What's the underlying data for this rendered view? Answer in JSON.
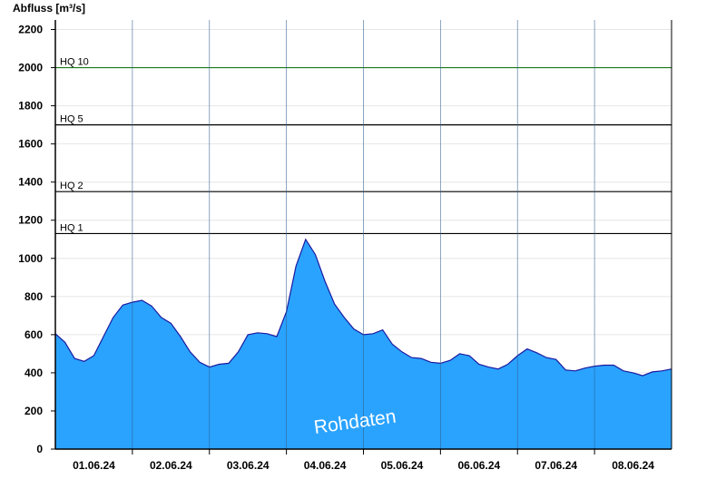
{
  "chart_data": {
    "type": "area",
    "ylabel": "Abfluss [m³/s]",
    "ylim": [
      0,
      2250
    ],
    "yticks": [
      0,
      200,
      400,
      600,
      800,
      1000,
      1200,
      1400,
      1600,
      1800,
      2000,
      2200
    ],
    "x_start": "2024-05-31T12:00",
    "x_end": "2024-06-08T12:00",
    "day_labels": [
      "01.06.24",
      "02.06.24",
      "03.06.24",
      "04.06.24",
      "05.06.24",
      "06.06.24",
      "07.06.24",
      "08.06.24"
    ],
    "grid": true,
    "fill_color": "#2aa3ff",
    "line_color": "#1a1aa0",
    "watermark": "Rohdaten",
    "thresholds": [
      {
        "label": "HQ 1",
        "value": 1130,
        "color": "#000000"
      },
      {
        "label": "HQ 2",
        "value": 1350,
        "color": "#000000"
      },
      {
        "label": "HQ 5",
        "value": 1700,
        "color": "#000000"
      },
      {
        "label": "HQ 10",
        "value": 2000,
        "color": "#1a7a1a"
      }
    ],
    "series": [
      {
        "x": [
          "2024-05-31T12:00",
          "2024-05-31T15:00",
          "2024-05-31T18:00",
          "2024-05-31T21:00",
          "2024-06-01T00:00",
          "2024-06-01T03:00",
          "2024-06-01T06:00",
          "2024-06-01T09:00",
          "2024-06-01T12:00",
          "2024-06-01T15:00",
          "2024-06-01T18:00",
          "2024-06-01T21:00",
          "2024-06-02T00:00",
          "2024-06-02T03:00",
          "2024-06-02T06:00",
          "2024-06-02T09:00",
          "2024-06-02T12:00",
          "2024-06-02T15:00",
          "2024-06-02T18:00",
          "2024-06-02T21:00",
          "2024-06-03T00:00",
          "2024-06-03T03:00",
          "2024-06-03T06:00",
          "2024-06-03T09:00",
          "2024-06-03T12:00",
          "2024-06-03T15:00",
          "2024-06-03T18:00",
          "2024-06-03T21:00",
          "2024-06-04T00:00",
          "2024-06-04T03:00",
          "2024-06-04T06:00",
          "2024-06-04T09:00",
          "2024-06-04T12:00",
          "2024-06-04T15:00",
          "2024-06-04T18:00",
          "2024-06-04T21:00",
          "2024-06-05T00:00",
          "2024-06-05T03:00",
          "2024-06-05T06:00",
          "2024-06-05T09:00",
          "2024-06-05T12:00",
          "2024-06-05T15:00",
          "2024-06-05T18:00",
          "2024-06-05T21:00",
          "2024-06-06T00:00",
          "2024-06-06T03:00",
          "2024-06-06T06:00",
          "2024-06-06T09:00",
          "2024-06-06T12:00",
          "2024-06-06T15:00",
          "2024-06-06T18:00",
          "2024-06-06T21:00",
          "2024-06-07T00:00",
          "2024-06-07T03:00",
          "2024-06-07T06:00",
          "2024-06-07T09:00",
          "2024-06-07T12:00",
          "2024-06-07T15:00",
          "2024-06-07T18:00",
          "2024-06-07T21:00",
          "2024-06-08T00:00",
          "2024-06-08T03:00",
          "2024-06-08T06:00",
          "2024-06-08T09:00",
          "2024-06-08T12:00"
        ],
        "y": [
          605,
          560,
          475,
          460,
          490,
          590,
          690,
          755,
          770,
          780,
          750,
          690,
          660,
          590,
          510,
          455,
          430,
          445,
          450,
          510,
          600,
          610,
          605,
          590,
          720,
          960,
          1100,
          1020,
          880,
          760,
          690,
          630,
          600,
          605,
          625,
          550,
          510,
          480,
          475,
          455,
          450,
          465,
          500,
          490,
          445,
          430,
          420,
          445,
          490,
          525,
          505,
          480,
          470,
          415,
          410,
          425,
          435,
          440,
          440,
          410,
          400,
          385,
          405,
          410,
          420
        ]
      }
    ]
  }
}
